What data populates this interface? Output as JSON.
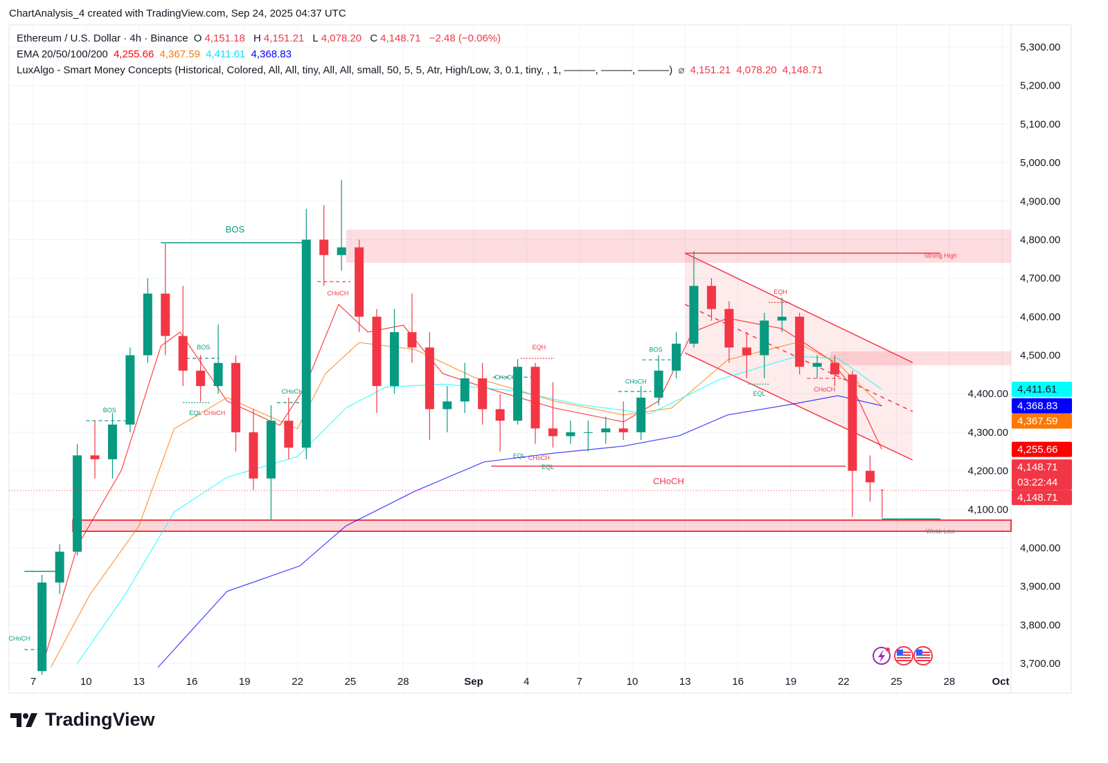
{
  "header": {
    "title": "ChartAnalysis_4 created with TradingView.com, Sep 24, 2025 04:37 UTC"
  },
  "legend": {
    "symbol": "Ethereum / U.S. Dollar · 4h · Binance",
    "o_label": "O",
    "o": "4,151.18",
    "h_label": "H",
    "h": "4,151.21",
    "l_label": "L",
    "l": "4,078.20",
    "c_label": "C",
    "c": "4,148.71",
    "change": "−2.48 (−0.06%)",
    "ema_label": "EMA 20/50/100/200",
    "ema20": "4,255.66",
    "ema50": "4,367.59",
    "ema100": "4,411.61",
    "ema200": "4,368.83",
    "smc_label": "LuxAlgo - Smart Money Concepts (Historical, Colored, All, All, tiny, All, All, small, 50, 5, 5, Atr, High/Low, 3, 0.1, tiny, , 1, ———, ———, ———)",
    "smc_symbol": "⌀",
    "smc_values": [
      "4,151.21",
      "4,078.20",
      "4,148.71"
    ]
  },
  "colors": {
    "up": "#089981",
    "down": "#f23645",
    "ema20": "#ff0000",
    "ema50": "#ff7700",
    "ema100": "#00ffff",
    "ema200": "#0000ff",
    "zone": "#f7c6c9",
    "structure_bull": "#089981",
    "structure_bear": "#f23645"
  },
  "chart_data": {
    "type": "candlestick",
    "title": "Ethereum / U.S. Dollar · 4h · Binance",
    "timeframe_note": "candles approximated at daily granularity",
    "ylim": [
      3700,
      5300
    ],
    "y_ticks": [
      "5,300.00",
      "5,200.00",
      "5,100.00",
      "5,000.00",
      "4,900.00",
      "4,800.00",
      "4,700.00",
      "4,600.00",
      "4,500.00",
      "4,400.00",
      "4,300.00",
      "4,200.00",
      "4,100.00",
      "4,000.00",
      "3,900.00",
      "3,800.00",
      "3,700.00"
    ],
    "x_ticks": [
      {
        "label": "7",
        "date": "2025-08-07"
      },
      {
        "label": "10",
        "date": "2025-08-10"
      },
      {
        "label": "13",
        "date": "2025-08-13"
      },
      {
        "label": "16",
        "date": "2025-08-16"
      },
      {
        "label": "19",
        "date": "2025-08-19"
      },
      {
        "label": "22",
        "date": "2025-08-22"
      },
      {
        "label": "25",
        "date": "2025-08-25"
      },
      {
        "label": "28",
        "date": "2025-08-28"
      },
      {
        "label": "Sep",
        "date": "2025-09-01",
        "bold": true
      },
      {
        "label": "4",
        "date": "2025-09-04"
      },
      {
        "label": "7",
        "date": "2025-09-07"
      },
      {
        "label": "10",
        "date": "2025-09-10"
      },
      {
        "label": "13",
        "date": "2025-09-13"
      },
      {
        "label": "16",
        "date": "2025-09-16"
      },
      {
        "label": "19",
        "date": "2025-09-19"
      },
      {
        "label": "22",
        "date": "2025-09-22"
      },
      {
        "label": "25",
        "date": "2025-09-25"
      },
      {
        "label": "28",
        "date": "2025-09-28"
      },
      {
        "label": "Oct",
        "date": "2025-10-01",
        "bold": true
      }
    ],
    "ohlc": [
      [
        "2025-08-07",
        3680,
        3930,
        3670,
        3910
      ],
      [
        "2025-08-08",
        3910,
        4010,
        3880,
        3990
      ],
      [
        "2025-08-09",
        3990,
        4270,
        3980,
        4240
      ],
      [
        "2025-08-10",
        4240,
        4330,
        4180,
        4230
      ],
      [
        "2025-08-11",
        4230,
        4350,
        4180,
        4320
      ],
      [
        "2025-08-12",
        4320,
        4520,
        4300,
        4500
      ],
      [
        "2025-08-13",
        4500,
        4700,
        4480,
        4660
      ],
      [
        "2025-08-14",
        4660,
        4790,
        4500,
        4550
      ],
      [
        "2025-08-15",
        4550,
        4680,
        4420,
        4460
      ],
      [
        "2025-08-16",
        4460,
        4500,
        4380,
        4420
      ],
      [
        "2025-08-17",
        4420,
        4580,
        4400,
        4480
      ],
      [
        "2025-08-18",
        4480,
        4500,
        4250,
        4300
      ],
      [
        "2025-08-19",
        4300,
        4360,
        4150,
        4180
      ],
      [
        "2025-08-20",
        4180,
        4370,
        4070,
        4330
      ],
      [
        "2025-08-21",
        4330,
        4390,
        4230,
        4260
      ],
      [
        "2025-08-22",
        4260,
        4880,
        4230,
        4800
      ],
      [
        "2025-08-23",
        4800,
        4890,
        4680,
        4760
      ],
      [
        "2025-08-24",
        4760,
        4955,
        4720,
        4780
      ],
      [
        "2025-08-25",
        4780,
        4800,
        4560,
        4600
      ],
      [
        "2025-08-26",
        4600,
        4620,
        4350,
        4420
      ],
      [
        "2025-08-27",
        4420,
        4620,
        4400,
        4560
      ],
      [
        "2025-08-28",
        4560,
        4660,
        4480,
        4520
      ],
      [
        "2025-08-29",
        4520,
        4560,
        4280,
        4360
      ],
      [
        "2025-08-30",
        4360,
        4420,
        4300,
        4380
      ],
      [
        "2025-08-31",
        4380,
        4480,
        4350,
        4440
      ],
      [
        "2025-09-01",
        4440,
        4480,
        4320,
        4360
      ],
      [
        "2025-09-02",
        4360,
        4400,
        4250,
        4330
      ],
      [
        "2025-09-03",
        4330,
        4490,
        4320,
        4470
      ],
      [
        "2025-09-04",
        4470,
        4480,
        4270,
        4310
      ],
      [
        "2025-09-05",
        4310,
        4430,
        4260,
        4290
      ],
      [
        "2025-09-06",
        4290,
        4330,
        4270,
        4300
      ],
      [
        "2025-09-07",
        4300,
        4330,
        4250,
        4300
      ],
      [
        "2025-09-08",
        4300,
        4340,
        4270,
        4310
      ],
      [
        "2025-09-09",
        4310,
        4380,
        4280,
        4300
      ],
      [
        "2025-09-10",
        4300,
        4420,
        4280,
        4390
      ],
      [
        "2025-09-11",
        4390,
        4500,
        4370,
        4460
      ],
      [
        "2025-09-12",
        4460,
        4560,
        4440,
        4530
      ],
      [
        "2025-09-13",
        4530,
        4770,
        4520,
        4680
      ],
      [
        "2025-09-14",
        4680,
        4700,
        4590,
        4620
      ],
      [
        "2025-09-15",
        4620,
        4640,
        4480,
        4520
      ],
      [
        "2025-09-16",
        4520,
        4560,
        4440,
        4500
      ],
      [
        "2025-09-17",
        4500,
        4610,
        4440,
        4590
      ],
      [
        "2025-09-18",
        4590,
        4650,
        4560,
        4600
      ],
      [
        "2025-09-19",
        4600,
        4610,
        4450,
        4470
      ],
      [
        "2025-09-20",
        4470,
        4500,
        4440,
        4480
      ],
      [
        "2025-09-21",
        4480,
        4500,
        4420,
        4450
      ],
      [
        "2025-09-22",
        4450,
        4460,
        4080,
        4200
      ],
      [
        "2025-09-23",
        4200,
        4240,
        4120,
        4170
      ],
      [
        "2025-09-24",
        4151.18,
        4151.21,
        4078.2,
        4148.71
      ]
    ],
    "series": [
      {
        "name": "EMA 20",
        "color": "#ff0000",
        "points": [
          [
            "2025-08-07T12",
            3690
          ],
          [
            "2025-08-09T12",
            4004
          ],
          [
            "2025-08-12T00",
            4201
          ],
          [
            "2025-08-14T06",
            4524
          ],
          [
            "2025-08-15T08",
            4560
          ],
          [
            "2025-08-18T00",
            4381
          ],
          [
            "2025-08-21T00",
            4318
          ],
          [
            "2025-08-22T10",
            4417
          ],
          [
            "2025-08-24T08",
            4632
          ],
          [
            "2025-08-26T00",
            4560
          ],
          [
            "2025-08-28T00",
            4578
          ],
          [
            "2025-08-30T06",
            4452
          ],
          [
            "2025-09-01T14",
            4417
          ],
          [
            "2025-09-05T14",
            4363
          ],
          [
            "2025-09-09T12",
            4327
          ],
          [
            "2025-09-11T12",
            4381
          ],
          [
            "2025-09-13T10",
            4560
          ],
          [
            "2025-09-15T10",
            4596
          ],
          [
            "2025-09-18T12",
            4569
          ],
          [
            "2025-09-21T06",
            4488
          ],
          [
            "2025-09-22T12",
            4417
          ],
          [
            "2025-09-24T04",
            4255.66
          ]
        ]
      },
      {
        "name": "EMA 50",
        "color": "#ff7700",
        "points": [
          [
            "2025-08-08T00",
            3690
          ],
          [
            "2025-08-10T05",
            3878
          ],
          [
            "2025-08-13T00",
            4057
          ],
          [
            "2025-08-15T00",
            4309
          ],
          [
            "2025-08-18T00",
            4390
          ],
          [
            "2025-08-22T00",
            4309
          ],
          [
            "2025-08-23T14",
            4452
          ],
          [
            "2025-08-25T12",
            4533
          ],
          [
            "2025-08-28T16",
            4515
          ],
          [
            "2025-09-01T00",
            4443
          ],
          [
            "2025-09-05T14",
            4381
          ],
          [
            "2025-09-09T12",
            4345
          ],
          [
            "2025-09-12T06",
            4363
          ],
          [
            "2025-09-15T10",
            4488
          ],
          [
            "2025-09-19T08",
            4533
          ],
          [
            "2025-09-21T16",
            4479
          ],
          [
            "2025-09-24T04",
            4367.59
          ]
        ]
      },
      {
        "name": "EMA 100",
        "color": "#00ffff",
        "points": [
          [
            "2025-08-09T12",
            3700
          ],
          [
            "2025-08-12T05",
            3878
          ],
          [
            "2025-08-15T00",
            4093
          ],
          [
            "2025-08-18T00",
            4183
          ],
          [
            "2025-08-22T00",
            4237
          ],
          [
            "2025-08-24T18",
            4363
          ],
          [
            "2025-08-27T00",
            4417
          ],
          [
            "2025-08-30T06",
            4425
          ],
          [
            "2025-09-03T06",
            4408
          ],
          [
            "2025-09-07T00",
            4372
          ],
          [
            "2025-09-11T00",
            4348
          ],
          [
            "2025-09-15T00",
            4438
          ],
          [
            "2025-09-19T08",
            4497
          ],
          [
            "2025-09-21T16",
            4492
          ],
          [
            "2025-09-24T04",
            4411.61
          ]
        ]
      },
      {
        "name": "EMA 200",
        "color": "#0000ff",
        "points": [
          [
            "2025-08-14T02",
            3690
          ],
          [
            "2025-08-18T00",
            3887
          ],
          [
            "2025-08-22T03",
            3953
          ],
          [
            "2025-08-24T18",
            4057
          ],
          [
            "2025-08-28T16",
            4147
          ],
          [
            "2025-09-01T14",
            4223
          ],
          [
            "2025-09-05T14",
            4246
          ],
          [
            "2025-09-09T12",
            4264
          ],
          [
            "2025-09-12T16",
            4291
          ],
          [
            "2025-09-15T10",
            4345
          ],
          [
            "2025-09-19T08",
            4375
          ],
          [
            "2025-09-21T16",
            4395
          ],
          [
            "2025-09-24T04",
            4368.83
          ]
        ]
      }
    ],
    "zones": [
      {
        "label": "Strong High",
        "from": "2025-08-24T18",
        "top": 4826,
        "bottom": 4740,
        "line": 4765,
        "line_from": "2025-09-13T00",
        "line_to": "2025-09-27T12",
        "label_color": "#f23645"
      },
      {
        "label": "Weak Low",
        "from": "2025-08-09T06",
        "top": 4072,
        "bottom": 4043,
        "line": 4075,
        "line_from": "2025-09-24T04",
        "line_to": "2025-09-27T12",
        "label_color": "#787b86"
      },
      {
        "label": "",
        "from": "2025-09-21T06",
        "top": 4510,
        "bottom": 4474
      }
    ],
    "channel": {
      "from": "2025-09-13T00",
      "to": "2025-09-25T22",
      "upper": [
        4765,
        4481
      ],
      "lower": [
        4506,
        4228
      ],
      "mid": [
        4632,
        4354
      ]
    },
    "structure_lines": [
      {
        "text": "BOS",
        "color": "#089981",
        "price": 4792,
        "from": "2025-08-14T06",
        "to": "2025-08-22T16",
        "size": "large"
      },
      {
        "text": "CHoCH",
        "color": "#f23645",
        "price": 4212,
        "from": "2025-09-02T00",
        "to": "2025-09-22T03",
        "size": "large"
      },
      {
        "text": "",
        "color": "#089981",
        "price": 3939,
        "from": "2025-08-06T12",
        "to": "2025-08-08T06",
        "size": "large"
      }
    ],
    "labels": [
      {
        "text": "BOS",
        "color": "#089981",
        "at": "2025-08-11T08",
        "price": 4357,
        "line": 4330,
        "lf": "2025-08-10T00",
        "lt": "2025-08-12T08"
      },
      {
        "text": "BOS",
        "color": "#089981",
        "at": "2025-08-16T16",
        "price": 4521,
        "line": 4492,
        "lf": "2025-08-15T08",
        "lt": "2025-08-17T14"
      },
      {
        "text": "EQL",
        "color": "#089981",
        "at": "2025-08-16T05",
        "price": 4350,
        "line": 4377,
        "lf": "2025-08-15T12",
        "lt": "2025-08-17T00",
        "dot": true
      },
      {
        "text": "CHoCH",
        "color": "#f23645",
        "at": "2025-08-17T07",
        "price": 4350
      },
      {
        "text": "CHoCH",
        "color": "#089981",
        "at": "2025-08-21T17",
        "price": 4406,
        "line": 4377,
        "lf": "2025-08-20T20",
        "lt": "2025-08-22T12"
      },
      {
        "text": "CHoCH",
        "color": "#f23645",
        "at": "2025-08-24T07",
        "price": 4661,
        "line": 4691,
        "lf": "2025-08-23T03",
        "lt": "2025-08-25T00"
      },
      {
        "text": "EQH",
        "color": "#f23645",
        "at": "2025-09-04T17",
        "price": 4521,
        "line": 4492,
        "lf": "2025-09-03T16",
        "lt": "2025-09-05T14",
        "dot": true
      },
      {
        "text": "CHoCH",
        "color": "#089981",
        "at": "2025-09-02T19",
        "price": 4443,
        "line": 4443,
        "lf": "2025-09-02T02",
        "lt": "2025-09-04T10"
      },
      {
        "text": "EQL",
        "color": "#089981",
        "at": "2025-09-03T14",
        "price": 4239
      },
      {
        "text": "CHoCH",
        "color": "#f23645",
        "at": "2025-09-04T17",
        "price": 4233
      },
      {
        "text": "EQL",
        "color": "#089981",
        "at": "2025-09-05T05",
        "price": 4246
      },
      {
        "text": "CHoCH",
        "color": "#089981",
        "at": "2025-09-10T05",
        "price": 4432,
        "line": 4406,
        "lf": "2025-09-09T05",
        "lt": "2025-09-11T02"
      },
      {
        "text": "BOS",
        "color": "#089981",
        "at": "2025-09-11T08",
        "price": 4514,
        "line": 4488,
        "lf": "2025-09-10T14",
        "lt": "2025-09-12T06"
      },
      {
        "text": "EQH",
        "color": "#f23645",
        "at": "2025-09-18T10",
        "price": 4664,
        "line": 4637,
        "lf": "2025-09-17T18",
        "lt": "2025-09-19T00",
        "dot": true
      },
      {
        "text": "EQL",
        "color": "#089981",
        "at": "2025-09-17T05",
        "price": 4400,
        "line": 4425,
        "lf": "2025-09-16T14",
        "lt": "2025-09-17T18",
        "dot": true
      },
      {
        "text": "CHoCH",
        "color": "#f23645",
        "at": "2025-09-20T22",
        "price": 4411,
        "line": 4440,
        "lf": "2025-09-19T22",
        "lt": "2025-09-21T22"
      },
      {
        "text": "CHoCH",
        "color": "#089981",
        "at": "2025-08-06T05",
        "price": 3765,
        "line": 3736,
        "lf": "2025-08-06T12",
        "lt": "2025-08-07T06"
      }
    ],
    "last_price_line": 4148.71,
    "price_badges": [
      {
        "text": "4,411.61",
        "price": 4411.61,
        "bg": "#00ffff",
        "fg": "#131722"
      },
      {
        "text": "4,368.83",
        "price": 4368.83,
        "bg": "#0000ff",
        "fg": "#ffffff"
      },
      {
        "text": "4,367.59",
        "price": 4367.59,
        "bg": "#ff7700",
        "fg": "#ffffff"
      },
      {
        "text": "4,255.66",
        "price": 4255.66,
        "bg": "#ff0000",
        "fg": "#ffffff"
      },
      {
        "text": "4,148.71",
        "sub": "03:22:44",
        "price": 4190,
        "bg": "#f23645",
        "fg": "#ffffff"
      },
      {
        "text": "4,148.71",
        "price": 4148.71,
        "bg": "#f23645",
        "fg": "#ffffff"
      }
    ]
  },
  "events": [
    "lightning-event-icon",
    "us-flag-icon",
    "us-flag-icon"
  ],
  "footer": {
    "logo_text": "TradingView"
  }
}
